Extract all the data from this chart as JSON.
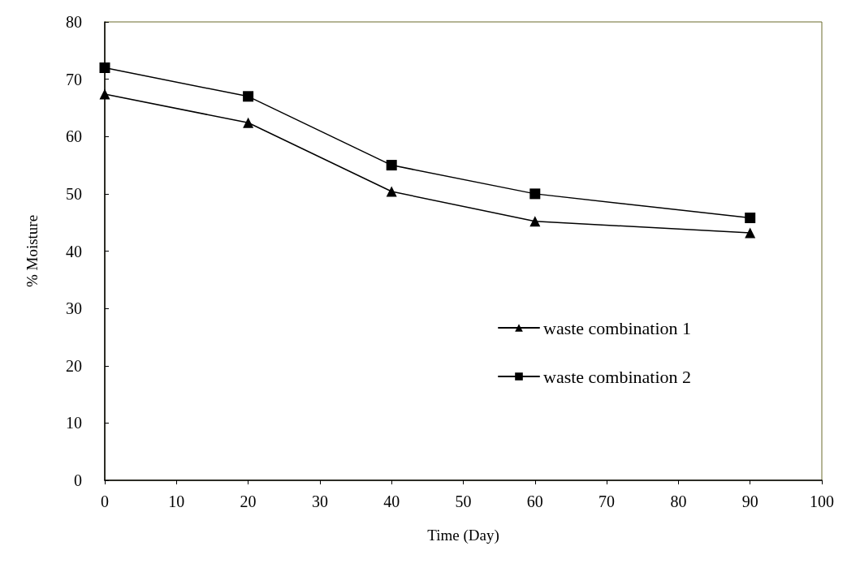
{
  "chart_data": {
    "type": "line",
    "xlabel": "Time (Day)",
    "ylabel": "% Moisture",
    "x": [
      0,
      20,
      40,
      60,
      90
    ],
    "series": [
      {
        "name": "waste combination 1",
        "color": "#000000",
        "marker": "triangle",
        "values": [
          67.4,
          62.4,
          50.4,
          45.2,
          43.2
        ]
      },
      {
        "name": "waste combination 2",
        "color": "#000000",
        "marker": "square",
        "values": [
          72,
          67,
          55,
          50,
          45.8
        ]
      }
    ],
    "xlim": [
      0,
      100
    ],
    "xticks": [
      0,
      10,
      20,
      30,
      40,
      50,
      60,
      70,
      80,
      90,
      100
    ],
    "ylim": [
      0,
      80
    ],
    "yticks": [
      0,
      10,
      20,
      30,
      40,
      50,
      60,
      70,
      80
    ],
    "grid": false,
    "legend": "right",
    "line_style": "solid"
  }
}
